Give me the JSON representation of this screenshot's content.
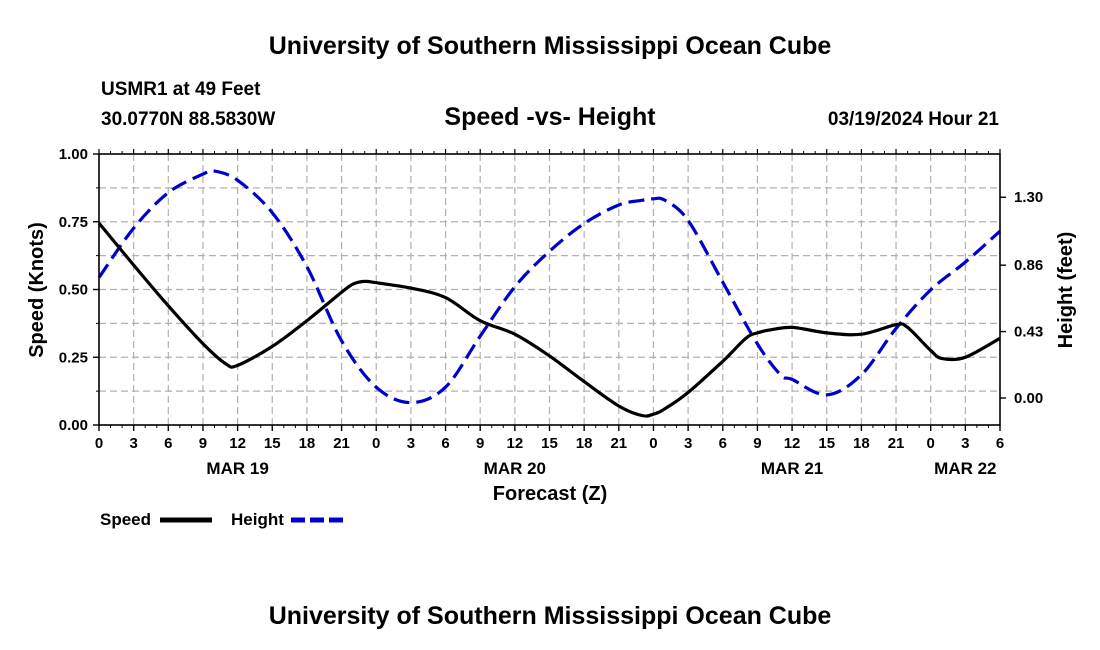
{
  "header": {
    "title": "University of Southern Mississippi Ocean Cube",
    "station": "USMR1 at 49 Feet",
    "coords": "30.0770N  88.5830W",
    "chart_title": "Speed -vs- Height",
    "datetime": "03/19/2024 Hour 21"
  },
  "footer": {
    "title": "University of Southern Mississippi Ocean Cube"
  },
  "chart_data": {
    "type": "line",
    "title": "Speed -vs- Height",
    "xlabel": "Forecast (Z)",
    "ylabel": "Speed (Knots)",
    "y2label": "Height (feet)",
    "x_unit": "hours since 03/19 00Z",
    "xlim": [
      0,
      78
    ],
    "ylim": [
      0,
      1.0
    ],
    "y2lim": [
      -0.175,
      1.58
    ],
    "y_ticks": [
      0,
      0.25,
      0.5,
      0.75,
      1.0
    ],
    "y_tick_labels": [
      "0.00",
      "0.25",
      "0.50",
      "0.75",
      "1.00"
    ],
    "y2_ticks": [
      0,
      0.43,
      0.86,
      1.3
    ],
    "y2_tick_labels": [
      "0.00",
      "0.43",
      "0.86",
      "1.30"
    ],
    "x_ticks": [
      0,
      3,
      6,
      9,
      12,
      15,
      18,
      21,
      24,
      27,
      30,
      33,
      36,
      39,
      42,
      45,
      48,
      51,
      54,
      57,
      60,
      63,
      66,
      69,
      72,
      75,
      78
    ],
    "x_tick_labels": [
      "0",
      "3",
      "6",
      "9",
      "12",
      "15",
      "18",
      "21",
      "0",
      "3",
      "6",
      "9",
      "12",
      "15",
      "18",
      "21",
      "0",
      "3",
      "6",
      "9",
      "12",
      "15",
      "18",
      "21",
      "0",
      "3",
      "6"
    ],
    "date_labels": [
      {
        "label": "MAR 19",
        "x": 12
      },
      {
        "label": "MAR 20",
        "x": 36
      },
      {
        "label": "MAR 21",
        "x": 60
      },
      {
        "label": "MAR 22",
        "x": 75
      }
    ],
    "grid": true,
    "legend": [
      {
        "name": "Speed",
        "color": "#000000",
        "style": "solid"
      },
      {
        "name": "Height",
        "color": "#0000cc",
        "style": "dashed"
      }
    ],
    "series": [
      {
        "name": "Speed",
        "axis": "left",
        "color": "#000000",
        "style": "solid",
        "x": [
          0,
          3,
          6,
          9,
          11,
          12,
          15,
          18,
          21,
          22,
          23,
          24,
          27,
          30,
          33,
          36,
          39,
          42,
          45,
          47,
          48,
          49,
          51,
          54,
          56,
          57,
          58,
          60,
          63,
          66,
          69,
          70,
          72,
          73,
          75,
          78
        ],
        "y": [
          0.745,
          0.59,
          0.44,
          0.3,
          0.225,
          0.22,
          0.29,
          0.385,
          0.49,
          0.52,
          0.53,
          0.525,
          0.505,
          0.47,
          0.385,
          0.335,
          0.255,
          0.16,
          0.07,
          0.035,
          0.04,
          0.06,
          0.12,
          0.235,
          0.32,
          0.34,
          0.35,
          0.36,
          0.34,
          0.335,
          0.37,
          0.36,
          0.275,
          0.245,
          0.25,
          0.32
        ]
      },
      {
        "name": "Height",
        "axis": "right",
        "color": "#0000cc",
        "style": "dashed",
        "x": [
          0,
          3,
          6,
          9,
          10,
          12,
          15,
          18,
          21,
          24,
          27,
          30,
          33,
          36,
          39,
          42,
          45,
          47,
          48,
          49,
          51,
          54,
          57,
          59,
          60,
          63,
          66,
          69,
          72,
          75,
          78
        ],
        "y": [
          0.78,
          1.1,
          1.33,
          1.45,
          1.47,
          1.41,
          1.2,
          0.85,
          0.37,
          0.07,
          -0.03,
          0.07,
          0.4,
          0.72,
          0.95,
          1.13,
          1.25,
          1.28,
          1.29,
          1.28,
          1.15,
          0.75,
          0.35,
          0.15,
          0.12,
          0.02,
          0.15,
          0.45,
          0.7,
          0.88,
          1.08
        ]
      }
    ]
  }
}
